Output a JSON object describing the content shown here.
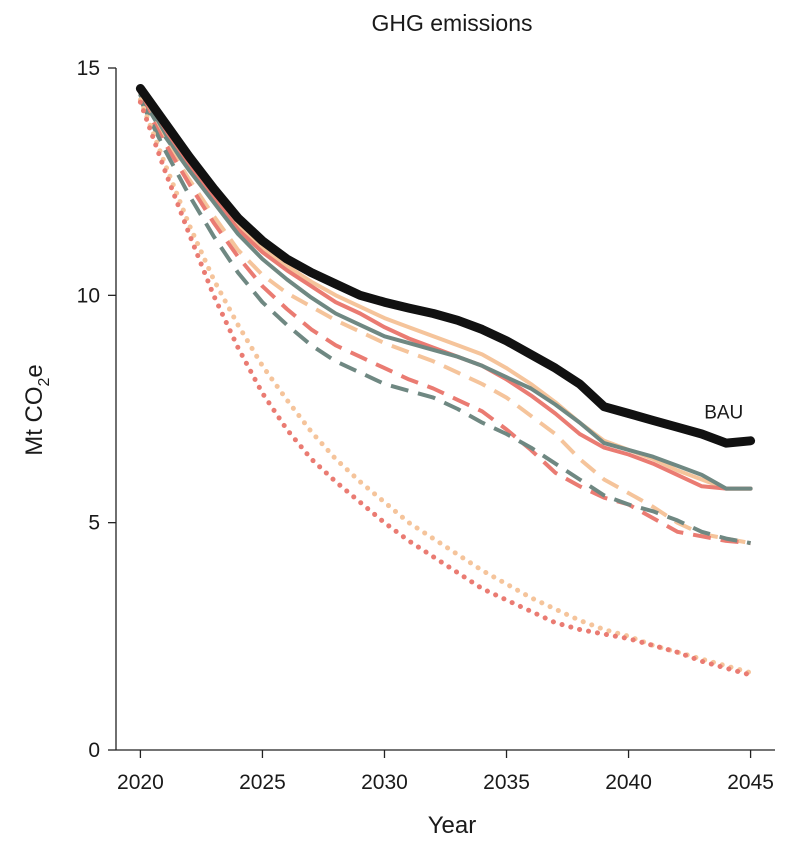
{
  "chart_data": {
    "type": "line",
    "title": "GHG emissions",
    "xlabel": "Year",
    "ylabel": {
      "main": "Mt CO",
      "sub": "2",
      "tail": "e"
    },
    "xlim": [
      2019,
      2046
    ],
    "ylim": [
      0,
      15
    ],
    "xticks": [
      2020,
      2025,
      2030,
      2035,
      2040,
      2045
    ],
    "yticks": [
      0,
      5,
      10,
      15
    ],
    "grid": false,
    "annotations": [
      {
        "text": "BAU",
        "x": 2043.9,
        "y": 7.45
      }
    ],
    "x": [
      2020,
      2021,
      2022,
      2023,
      2024,
      2025,
      2026,
      2027,
      2028,
      2029,
      2030,
      2031,
      2032,
      2033,
      2034,
      2035,
      2036,
      2037,
      2038,
      2039,
      2040,
      2041,
      2042,
      2043,
      2044,
      2045
    ],
    "series": [
      {
        "name": "BAU",
        "color": "#111111",
        "style": "solid",
        "width": 9,
        "values": [
          14.55,
          13.8,
          13.05,
          12.35,
          11.7,
          11.2,
          10.8,
          10.5,
          10.25,
          10.0,
          9.85,
          9.72,
          9.6,
          9.45,
          9.25,
          9.0,
          8.7,
          8.4,
          8.05,
          7.55,
          7.4,
          7.25,
          7.1,
          6.95,
          6.75,
          6.8
        ]
      },
      {
        "color": "#f5c49b",
        "style": "solid",
        "width": 4,
        "values": [
          14.45,
          13.6,
          12.9,
          12.2,
          11.55,
          11.05,
          10.65,
          10.3,
          10.0,
          9.75,
          9.5,
          9.3,
          9.1,
          8.9,
          8.7,
          8.4,
          8.05,
          7.65,
          7.2,
          6.8,
          6.6,
          6.4,
          6.15,
          5.95,
          5.75,
          5.75
        ]
      },
      {
        "color": "#ea7b72",
        "style": "solid",
        "width": 4,
        "values": [
          14.45,
          13.58,
          12.85,
          12.15,
          11.45,
          10.95,
          10.55,
          10.2,
          9.85,
          9.6,
          9.3,
          9.05,
          8.85,
          8.65,
          8.45,
          8.15,
          7.8,
          7.4,
          6.95,
          6.65,
          6.5,
          6.3,
          6.05,
          5.8,
          5.75,
          5.75
        ]
      },
      {
        "color": "#6f8882",
        "style": "solid",
        "width": 4,
        "values": [
          14.4,
          13.5,
          12.75,
          12.05,
          11.35,
          10.8,
          10.35,
          9.95,
          9.6,
          9.35,
          9.1,
          8.95,
          8.8,
          8.65,
          8.45,
          8.2,
          7.95,
          7.6,
          7.2,
          6.75,
          6.6,
          6.45,
          6.25,
          6.05,
          5.75,
          5.75
        ]
      },
      {
        "color": "#f5c49b",
        "style": "dashed",
        "width": 4,
        "values": [
          14.35,
          13.4,
          12.55,
          11.75,
          11.0,
          10.45,
          10.05,
          9.75,
          9.45,
          9.2,
          8.95,
          8.75,
          8.55,
          8.3,
          8.05,
          7.75,
          7.35,
          6.95,
          6.4,
          5.95,
          5.65,
          5.35,
          5.0,
          4.75,
          4.65,
          4.55
        ]
      },
      {
        "color": "#ea7b72",
        "style": "dashed",
        "width": 4,
        "values": [
          14.35,
          13.35,
          12.45,
          11.6,
          10.85,
          10.2,
          9.7,
          9.25,
          8.9,
          8.65,
          8.4,
          8.15,
          7.95,
          7.7,
          7.45,
          7.05,
          6.6,
          6.1,
          5.8,
          5.55,
          5.4,
          5.1,
          4.8,
          4.7,
          4.6,
          4.55
        ]
      },
      {
        "color": "#6f8882",
        "style": "dashed",
        "width": 4,
        "values": [
          14.3,
          13.2,
          12.2,
          11.3,
          10.5,
          9.85,
          9.35,
          8.9,
          8.55,
          8.3,
          8.05,
          7.9,
          7.75,
          7.5,
          7.2,
          6.95,
          6.65,
          6.3,
          5.95,
          5.6,
          5.4,
          5.25,
          5.05,
          4.8,
          4.65,
          4.55
        ]
      },
      {
        "color": "#f5c49b",
        "style": "dotted",
        "width": 5,
        "values": [
          14.3,
          12.9,
          11.55,
          10.35,
          9.35,
          8.45,
          7.7,
          7.0,
          6.4,
          5.9,
          5.45,
          5.0,
          4.65,
          4.3,
          3.95,
          3.65,
          3.35,
          3.1,
          2.85,
          2.65,
          2.5,
          2.3,
          2.15,
          2.0,
          1.85,
          1.7
        ]
      },
      {
        "color": "#ea7b72",
        "style": "dotted",
        "width": 5,
        "values": [
          14.25,
          12.75,
          11.35,
          10.0,
          8.85,
          7.85,
          7.05,
          6.4,
          5.9,
          5.45,
          5.0,
          4.6,
          4.25,
          3.9,
          3.55,
          3.3,
          3.05,
          2.8,
          2.65,
          2.55,
          2.45,
          2.3,
          2.15,
          1.95,
          1.8,
          1.65
        ]
      }
    ]
  }
}
